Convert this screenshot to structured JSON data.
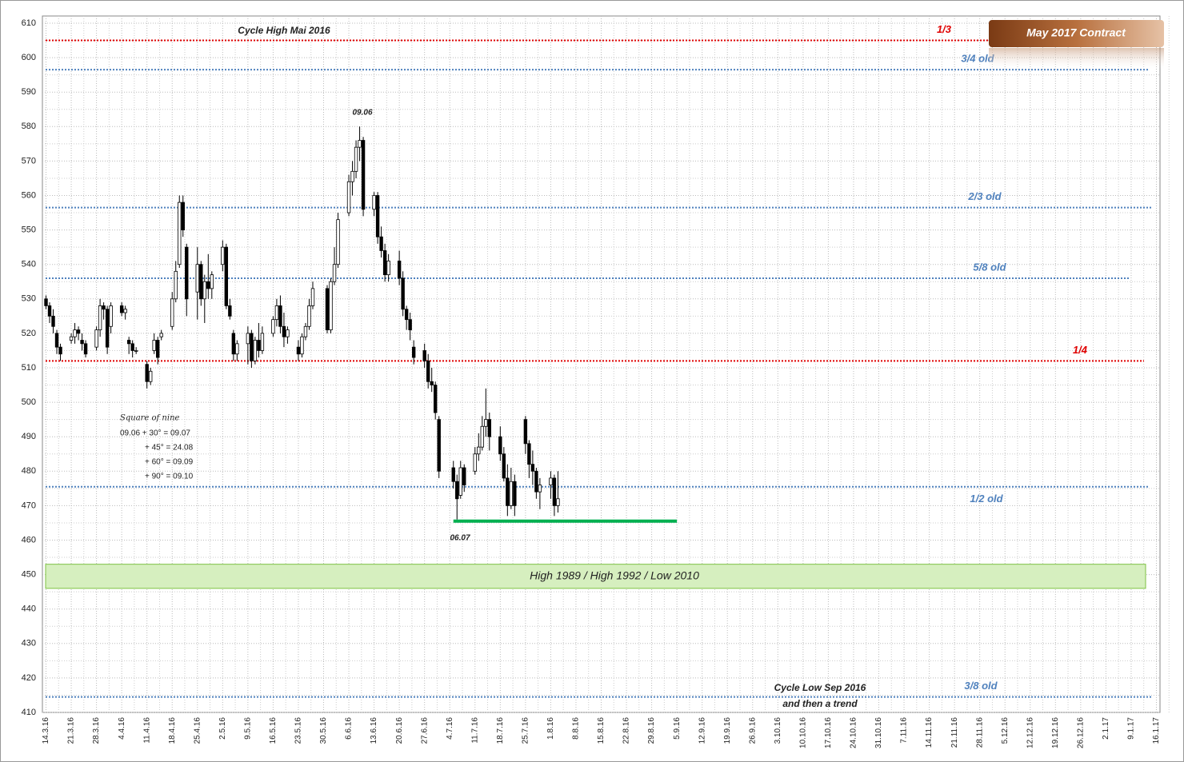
{
  "chart_data": {
    "type": "candlestick",
    "title": "May 2017 Contract",
    "ylim": [
      410,
      610
    ],
    "yticks": [
      410,
      420,
      430,
      440,
      450,
      460,
      470,
      480,
      490,
      500,
      510,
      520,
      530,
      540,
      550,
      560,
      570,
      580,
      590,
      600,
      610
    ],
    "xlim": [
      "13.3.16",
      "17.1.17"
    ],
    "xticks": [
      "14.3.16",
      "21.3.16",
      "28.3.16",
      "4.4.16",
      "11.4.16",
      "18.4.16",
      "25.4.16",
      "2.5.16",
      "9.5.16",
      "16.5.16",
      "23.5.16",
      "30.5.16",
      "6.6.16",
      "13.6.16",
      "20.6.16",
      "27.6.16",
      "4.7.16",
      "11.7.16",
      "18.7.16",
      "25.7.16",
      "1.8.16",
      "8.8.16",
      "15.8.16",
      "22.8.16",
      "29.8.16",
      "5.9.16",
      "12.9.16",
      "19.9.16",
      "26.9.16",
      "3.10.16",
      "10.10.16",
      "17.10.16",
      "24.10.16",
      "31.10.16",
      "7.11.16",
      "14.11.16",
      "21.11.16",
      "28.11.16",
      "5.12.16",
      "12.12.16",
      "19.12.16",
      "26.12.16",
      "2.1.17",
      "9.1.17",
      "16.1.17"
    ],
    "grid": true,
    "x": [
      "14.3.16",
      "15.3.16",
      "16.3.16",
      "17.3.16",
      "18.3.16",
      "21.3.16",
      "22.3.16",
      "23.3.16",
      "24.3.16",
      "25.3.16",
      "28.3.16",
      "29.3.16",
      "30.3.16",
      "31.3.16",
      "1.4.16",
      "4.4.16",
      "5.4.16",
      "6.4.16",
      "7.4.16",
      "8.4.16",
      "11.4.16",
      "12.4.16",
      "13.4.16",
      "14.4.16",
      "15.4.16",
      "18.4.16",
      "19.4.16",
      "20.4.16",
      "21.4.16",
      "22.4.16",
      "25.4.16",
      "26.4.16",
      "27.4.16",
      "28.4.16",
      "29.4.16",
      "2.5.16",
      "3.5.16",
      "4.5.16",
      "5.5.16",
      "6.5.16",
      "9.5.16",
      "10.5.16",
      "11.5.16",
      "12.5.16",
      "13.5.16",
      "16.5.16",
      "17.5.16",
      "18.5.16",
      "19.5.16",
      "20.5.16",
      "23.5.16",
      "24.5.16",
      "25.5.16",
      "26.5.16",
      "27.5.16",
      "31.5.16",
      "1.6.16",
      "2.6.16",
      "3.6.16",
      "6.6.16",
      "7.6.16",
      "8.6.16",
      "9.6.16",
      "10.6.16",
      "13.6.16",
      "14.6.16",
      "15.6.16",
      "16.6.16",
      "17.6.16",
      "20.6.16",
      "21.6.16",
      "22.6.16",
      "23.6.16",
      "24.6.16",
      "27.6.16",
      "28.6.16",
      "29.6.16",
      "30.6.16",
      "1.7.16",
      "5.7.16",
      "6.7.16",
      "7.7.16",
      "8.7.16",
      "11.7.16",
      "12.7.16",
      "13.7.16",
      "14.7.16",
      "15.7.16",
      "18.7.16",
      "19.7.16",
      "20.7.16",
      "21.7.16",
      "22.7.16",
      "25.7.16",
      "26.7.16",
      "27.7.16",
      "28.7.16",
      "29.7.16",
      "1.8.16",
      "2.8.16",
      "3.8.16"
    ],
    "open": [
      530,
      528,
      525,
      520,
      516,
      518,
      519,
      521,
      518,
      517,
      516,
      521,
      528,
      527,
      522,
      528,
      526,
      518,
      517,
      515,
      511,
      506,
      515,
      518,
      519,
      522,
      530,
      540,
      558,
      545,
      532,
      540,
      530,
      535,
      533,
      540,
      545,
      528,
      520,
      514,
      517,
      520,
      512,
      518,
      515,
      520,
      524,
      528,
      522,
      519,
      516,
      514,
      519,
      522,
      528,
      533,
      521,
      535,
      540,
      555,
      564,
      567,
      574,
      576,
      556,
      560,
      548,
      544,
      537,
      541,
      536,
      527,
      524,
      516,
      515,
      512,
      506,
      505,
      495,
      481,
      477,
      473,
      481,
      480,
      485,
      487,
      493,
      495,
      490,
      485,
      478,
      470,
      477,
      495,
      488,
      482,
      480,
      474,
      476,
      478,
      470
    ],
    "high": [
      531,
      529,
      527,
      521,
      517,
      520,
      523,
      522,
      520,
      518,
      522,
      530,
      529,
      528,
      529,
      529,
      528,
      519,
      518,
      516,
      512,
      510,
      520,
      519,
      521,
      532,
      541,
      560,
      560,
      546,
      545,
      541,
      537,
      543,
      538,
      547,
      546,
      530,
      521,
      518,
      522,
      521,
      519,
      523,
      522,
      525,
      530,
      531,
      526,
      522,
      518,
      520,
      523,
      530,
      535,
      534,
      536,
      545,
      555,
      566,
      570,
      576,
      580,
      577,
      561,
      561,
      551,
      546,
      543,
      544,
      538,
      528,
      526,
      518,
      517,
      514,
      510,
      506,
      496,
      483,
      479,
      483,
      482,
      487,
      491,
      496,
      504,
      497,
      493,
      487,
      482,
      481,
      479,
      496,
      489,
      486,
      481,
      478,
      480,
      479,
      480
    ],
    "low": [
      527,
      523,
      520,
      514,
      512,
      517,
      517,
      518,
      515,
      513,
      515,
      519,
      524,
      514,
      520,
      525,
      524,
      514,
      513,
      514,
      504,
      505,
      514,
      511,
      518,
      521,
      529,
      539,
      548,
      525,
      524,
      528,
      523,
      530,
      530,
      538,
      527,
      524,
      512,
      512,
      511,
      510,
      511,
      513,
      514,
      519,
      522,
      520,
      516,
      517,
      512,
      513,
      518,
      521,
      527,
      520,
      520,
      534,
      539,
      554,
      560,
      565,
      570,
      554,
      554,
      546,
      542,
      535,
      535,
      534,
      525,
      521,
      518,
      511,
      510,
      504,
      503,
      495,
      478,
      475,
      466,
      472,
      474,
      479,
      483,
      486,
      490,
      486,
      483,
      477,
      467,
      469,
      467,
      485,
      478,
      476,
      472,
      469,
      472,
      467,
      468
    ],
    "close": [
      528,
      525,
      522,
      516,
      514,
      519,
      521,
      520,
      517,
      514,
      521,
      528,
      527,
      516,
      528,
      526,
      527,
      517,
      515,
      515,
      506,
      509,
      518,
      513,
      520,
      530,
      538,
      558,
      550,
      530,
      540,
      530,
      535,
      533,
      537,
      545,
      528,
      525,
      514,
      517,
      520,
      512,
      518,
      515,
      520,
      524,
      528,
      522,
      519,
      521,
      514,
      519,
      522,
      528,
      533,
      521,
      535,
      540,
      553,
      564,
      567,
      574,
      576,
      556,
      560,
      548,
      544,
      537,
      541,
      536,
      527,
      524,
      521,
      513,
      512,
      506,
      505,
      497,
      480,
      477,
      472,
      481,
      476,
      485,
      487,
      493,
      495,
      490,
      485,
      478,
      470,
      477,
      470,
      488,
      482,
      480,
      474,
      476,
      478,
      470,
      472
    ],
    "lines": [
      {
        "value": 605,
        "label": "1/3",
        "color": "#e00000"
      },
      {
        "value": 596.5,
        "label": "3/4 old",
        "color": "#4f81bd"
      },
      {
        "value": 556.5,
        "label": "2/3 old",
        "color": "#4f81bd"
      },
      {
        "value": 536,
        "label": "5/8 old",
        "color": "#4f81bd"
      },
      {
        "value": 512,
        "label": "1/4",
        "color": "#e00000"
      },
      {
        "value": 475.5,
        "label": "1/2 old",
        "color": "#4f81bd"
      },
      {
        "value": 414.5,
        "label": "3/8 old",
        "color": "#4f81bd"
      }
    ],
    "zone": {
      "low": 446,
      "high": 453,
      "label": "High 1989 / High 1992 / Low 2010",
      "color": "#d6efbf"
    },
    "support": {
      "value": 465.5,
      "from": "5.7.16",
      "to": "5.9.16",
      "color": "#00b050"
    },
    "annotations": [
      "Cycle High Mai 2016",
      "09.06",
      "06.07",
      "Cycle Low Sep 2016",
      "and then a trend"
    ],
    "square_of_nine": [
      "Square of nine",
      "09.06 + 30° = 09.07",
      "+ 45° = 24.08",
      "+ 60° = 09.09",
      "+ 90° = 09.10"
    ]
  }
}
